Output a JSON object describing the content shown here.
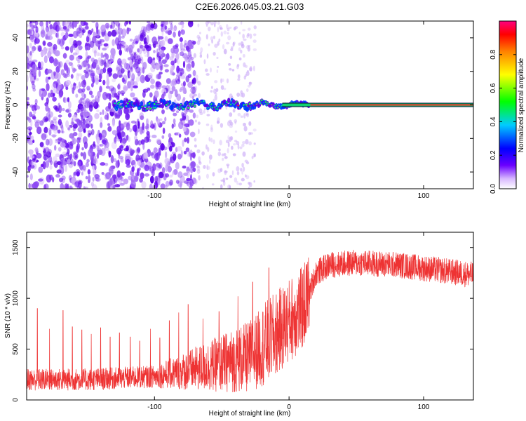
{
  "page_title": "C2E6.2026.045.03.21.G03",
  "chart_data": [
    {
      "type": "heatmap",
      "name": "spectrogram",
      "xlabel": "Height of straight line (km)",
      "ylabel": "Frequency (Hz)",
      "xlim": [
        -195,
        137
      ],
      "ylim": [
        -50,
        50
      ],
      "xticks": [
        -100,
        0,
        100
      ],
      "xtick_labels": [
        "-100",
        "0",
        "100"
      ],
      "yticks": [
        -40,
        -20,
        0,
        20,
        40
      ],
      "ytick_labels": [
        "-40",
        "-20",
        "0",
        "20",
        "40"
      ],
      "colorbar": {
        "label": "Normalized spectral amplitude",
        "range": [
          0,
          1
        ],
        "ticks": [
          0.0,
          0.2,
          0.4,
          0.6,
          0.8
        ],
        "tick_labels": [
          "0.0",
          "0.2",
          "0.4",
          "0.6",
          "0.8"
        ],
        "colormap": [
          "#ffffff",
          "#6a00ff",
          "#0000ff",
          "#00ffff",
          "#00ff00",
          "#ffff00",
          "#ff8000",
          "#ff0000",
          "#ff0080"
        ]
      },
      "features": {
        "noise_region_x": [
          -195,
          -70
        ],
        "sparse_noise_x": [
          -70,
          -25
        ],
        "signal_start_x": -130,
        "coherent_line_start_x": 15,
        "line_frequency": 0
      }
    },
    {
      "type": "line",
      "name": "snr",
      "xlabel": "Height of straight line (km)",
      "ylabel": "SNR (10 * v/v)",
      "xlim": [
        -195,
        137
      ],
      "ylim": [
        0,
        1650
      ],
      "xticks": [
        -100,
        0,
        100
      ],
      "xtick_labels": [
        "-100",
        "0",
        "100"
      ],
      "yticks": [
        0,
        500,
        1000,
        1500
      ],
      "ytick_labels": [
        "0",
        "500",
        "1000",
        "1500"
      ],
      "color": "#ee3333",
      "trend": {
        "x": [
          -195,
          -150,
          -100,
          -75,
          -50,
          -30,
          -15,
          0,
          10,
          15,
          20,
          30,
          50,
          80,
          110,
          137
        ],
        "y": [
          200,
          200,
          230,
          290,
          360,
          420,
          580,
          780,
          900,
          1050,
          1250,
          1330,
          1350,
          1330,
          1280,
          1230
        ]
      },
      "spikes": {
        "x": [
          -187,
          -178,
          -168,
          -161,
          -154,
          -147,
          -140,
          -133,
          -126,
          -118,
          -111,
          -103,
          -96,
          -89,
          -82,
          -75,
          -64,
          -52,
          -38,
          -27,
          -15
        ],
        "y": [
          900,
          700,
          880,
          720,
          690,
          650,
          710,
          620,
          660,
          620,
          580,
          700,
          610,
          780,
          860,
          940,
          800,
          870,
          1020,
          1160,
          1300
        ]
      }
    }
  ]
}
